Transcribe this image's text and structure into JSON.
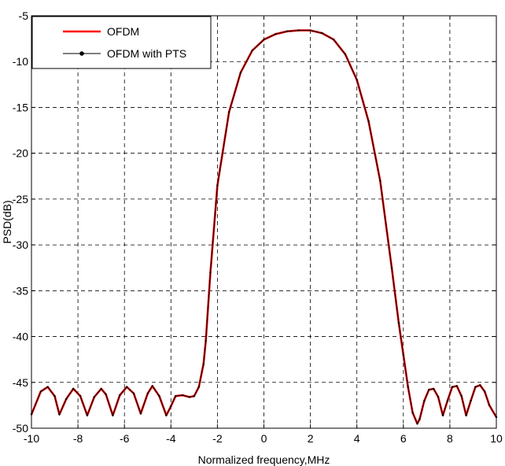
{
  "chart_data": {
    "type": "line",
    "title": "",
    "xlabel": "Normalized frequency,MHz",
    "ylabel": "PSD(dB)",
    "xlim": [
      -10,
      10
    ],
    "ylim": [
      -50,
      -5
    ],
    "xticks": [
      -10,
      -8,
      -6,
      -4,
      -2,
      0,
      2,
      4,
      6,
      8,
      10
    ],
    "yticks": [
      -5,
      -10,
      -15,
      -20,
      -25,
      -30,
      -35,
      -40,
      -45,
      -50
    ],
    "grid": true,
    "grid_style": "dashed",
    "legend_position": "top-left",
    "series": [
      {
        "name": "OFDM",
        "color": "#ff0000",
        "x": [
          -10,
          -9.6,
          -9.3,
          -9.0,
          -8.8,
          -8.5,
          -8.2,
          -7.9,
          -7.6,
          -7.3,
          -7.0,
          -6.8,
          -6.5,
          -6.2,
          -5.9,
          -5.6,
          -5.3,
          -5.0,
          -4.8,
          -4.5,
          -4.2,
          -4.0,
          -3.8,
          -3.5,
          -3.2,
          -3.0,
          -2.8,
          -2.6,
          -2.5,
          -2.3,
          -2.0,
          -1.5,
          -1.0,
          -0.5,
          0,
          0.5,
          1.0,
          1.5,
          2.0,
          2.5,
          3.0,
          3.5,
          4.0,
          4.5,
          5.0,
          5.5,
          5.8,
          6.0,
          6.2,
          6.4,
          6.6,
          6.7,
          6.9,
          7.1,
          7.3,
          7.5,
          7.7,
          7.9,
          8.1,
          8.3,
          8.5,
          8.7,
          8.9,
          9.1,
          9.3,
          9.5,
          9.7,
          10
        ],
        "y": [
          -48.5,
          -46.0,
          -45.5,
          -46.5,
          -48.5,
          -46.8,
          -45.7,
          -46.5,
          -48.6,
          -46.6,
          -45.7,
          -46.3,
          -48.6,
          -46.4,
          -45.5,
          -46.2,
          -48.4,
          -46.2,
          -45.4,
          -46.5,
          -48.6,
          -47.6,
          -46.5,
          -46.4,
          -46.6,
          -46.5,
          -45.5,
          -43.0,
          -40.5,
          -33.0,
          -23.5,
          -15.5,
          -11.2,
          -8.8,
          -7.6,
          -7.0,
          -6.7,
          -6.6,
          -6.6,
          -6.9,
          -7.6,
          -9.2,
          -12.0,
          -16.5,
          -23.0,
          -32.5,
          -38.5,
          -42.0,
          -45.5,
          -48.3,
          -49.5,
          -49.0,
          -47.0,
          -45.8,
          -45.7,
          -46.6,
          -48.6,
          -47.0,
          -45.5,
          -45.4,
          -46.5,
          -48.6,
          -47.0,
          -45.5,
          -45.3,
          -46.0,
          -47.5,
          -48.8
        ]
      },
      {
        "name": "OFDM with PTS",
        "color": "#000000",
        "marker": "dot",
        "x": [
          -10,
          -9.6,
          -9.3,
          -9.0,
          -8.8,
          -8.5,
          -8.2,
          -7.9,
          -7.6,
          -7.3,
          -7.0,
          -6.8,
          -6.5,
          -6.2,
          -5.9,
          -5.6,
          -5.3,
          -5.0,
          -4.8,
          -4.5,
          -4.2,
          -4.0,
          -3.8,
          -3.5,
          -3.2,
          -3.0,
          -2.8,
          -2.6,
          -2.5,
          -2.3,
          -2.0,
          -1.5,
          -1.0,
          -0.5,
          0,
          0.5,
          1.0,
          1.5,
          2.0,
          2.5,
          3.0,
          3.5,
          4.0,
          4.5,
          5.0,
          5.5,
          5.8,
          6.0,
          6.2,
          6.4,
          6.6,
          6.7,
          6.9,
          7.1,
          7.3,
          7.5,
          7.7,
          7.9,
          8.1,
          8.3,
          8.5,
          8.7,
          8.9,
          9.1,
          9.3,
          9.5,
          9.7,
          10
        ],
        "y": [
          -48.5,
          -46.0,
          -45.5,
          -46.5,
          -48.5,
          -46.8,
          -45.7,
          -46.5,
          -48.6,
          -46.6,
          -45.7,
          -46.3,
          -48.6,
          -46.4,
          -45.5,
          -46.2,
          -48.4,
          -46.2,
          -45.4,
          -46.5,
          -48.6,
          -47.6,
          -46.5,
          -46.4,
          -46.6,
          -46.5,
          -45.5,
          -43.0,
          -40.5,
          -33.0,
          -23.5,
          -15.5,
          -11.2,
          -8.8,
          -7.6,
          -7.0,
          -6.7,
          -6.6,
          -6.6,
          -6.9,
          -7.6,
          -9.2,
          -12.0,
          -16.5,
          -23.0,
          -32.5,
          -38.5,
          -42.0,
          -45.5,
          -48.3,
          -49.5,
          -49.0,
          -47.0,
          -45.8,
          -45.7,
          -46.6,
          -48.6,
          -47.0,
          -45.5,
          -45.4,
          -46.5,
          -48.6,
          -47.0,
          -45.5,
          -45.3,
          -46.0,
          -47.5,
          -48.8
        ]
      }
    ]
  }
}
